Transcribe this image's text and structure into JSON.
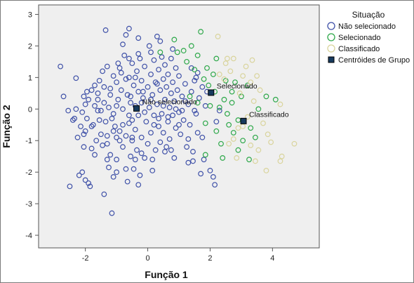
{
  "chart_data": {
    "type": "scatter",
    "xlabel": "Função 1",
    "ylabel": "Função 2",
    "xlim": [
      -3.5,
      5.5
    ],
    "ylim": [
      -4.4,
      3.3
    ],
    "x_ticks": [
      -2,
      0,
      2,
      4
    ],
    "y_ticks": [
      3,
      2,
      1,
      0,
      -1,
      -2,
      -3,
      -4
    ],
    "grid": false,
    "legend_position": "right",
    "legend": {
      "title": "Situação",
      "entries": [
        {
          "label": "Não selecionado",
          "marker": "circle",
          "color": "#3f51a8"
        },
        {
          "label": "Selecionado",
          "marker": "circle",
          "color": "#2ea84a"
        },
        {
          "label": "Classificado",
          "marker": "circle",
          "color": "#d9d49c"
        },
        {
          "label": "Centróides de Grupo",
          "marker": "square",
          "color": "#173a5e"
        }
      ]
    },
    "series": [
      {
        "name": "Não selecionado",
        "color": "#3f51a8",
        "points": [
          [
            -2.8,
            1.35
          ],
          [
            -2.7,
            0.4
          ],
          [
            -2.55,
            -0.05
          ],
          [
            -2.5,
            -2.45
          ],
          [
            -2.4,
            -0.35
          ],
          [
            -2.35,
            -0.3
          ],
          [
            -2.3,
            0.98
          ],
          [
            -2.2,
            -2.1
          ],
          [
            -2.1,
            -2.0
          ],
          [
            -2.0,
            -2.25
          ],
          [
            -2.05,
            -0.8
          ],
          [
            -2.15,
            -0.55
          ],
          [
            -2.0,
            0.15
          ],
          [
            -2.05,
            0.4
          ],
          [
            -1.95,
            -0.3
          ],
          [
            -1.9,
            0.3
          ],
          [
            -1.9,
            -2.35
          ],
          [
            -1.85,
            -2.45
          ],
          [
            -1.8,
            0.6
          ],
          [
            -1.8,
            -1.25
          ],
          [
            -1.75,
            -0.5
          ],
          [
            -1.7,
            0.75
          ],
          [
            -1.65,
            -1.0
          ],
          [
            -1.6,
            -0.05
          ],
          [
            -1.6,
            0.5
          ],
          [
            -1.55,
            0.9
          ],
          [
            -1.5,
            -0.8
          ],
          [
            -1.45,
            1.2
          ],
          [
            -1.4,
            -2.7
          ],
          [
            -1.4,
            0.2
          ],
          [
            -1.35,
            -0.4
          ],
          [
            -1.3,
            1.35
          ],
          [
            -1.3,
            -1.1
          ],
          [
            -1.25,
            0.05
          ],
          [
            -1.2,
            0.65
          ],
          [
            -1.2,
            -1.45
          ],
          [
            -1.15,
            -0.3
          ],
          [
            -1.1,
            1.05
          ],
          [
            -1.1,
            -0.15
          ],
          [
            -1.05,
            -0.55
          ],
          [
            -1.0,
            0.85
          ],
          [
            -1.0,
            -1.6
          ],
          [
            -0.95,
            0.3
          ],
          [
            -0.9,
            -0.7
          ],
          [
            -0.9,
            1.3
          ],
          [
            -0.85,
            0.6
          ],
          [
            -0.8,
            -1.2
          ],
          [
            -0.8,
            0.0
          ],
          [
            -0.75,
            1.7
          ],
          [
            -0.7,
            -0.85
          ],
          [
            -0.7,
            2.35
          ],
          [
            -0.65,
            0.45
          ],
          [
            -0.65,
            -2.3
          ],
          [
            -0.6,
            1.0
          ],
          [
            -0.6,
            -0.45
          ],
          [
            -0.55,
            -1.5
          ],
          [
            -0.55,
            0.2
          ],
          [
            -0.5,
            1.45
          ],
          [
            -0.5,
            -1.0
          ],
          [
            -0.45,
            0.75
          ],
          [
            -0.45,
            -1.9
          ],
          [
            -0.4,
            0.1
          ],
          [
            -0.4,
            -0.65
          ],
          [
            -0.35,
            1.2
          ],
          [
            -0.35,
            -1.3
          ],
          [
            -0.3,
            0.55
          ],
          [
            -0.3,
            -0.2
          ],
          [
            -0.25,
            -2.1
          ],
          [
            -0.25,
            1.6
          ],
          [
            -0.2,
            0.9
          ],
          [
            -0.2,
            -0.9
          ],
          [
            -0.15,
            0.35
          ],
          [
            -0.1,
            -1.55
          ],
          [
            -0.1,
            1.35
          ],
          [
            -0.05,
            -0.4
          ],
          [
            0.0,
            0.7
          ],
          [
            0.0,
            -1.1
          ],
          [
            0.05,
            2.0
          ],
          [
            0.05,
            0.05
          ],
          [
            0.1,
            1.1
          ],
          [
            0.1,
            -0.75
          ],
          [
            0.15,
            -1.6
          ],
          [
            0.15,
            0.45
          ],
          [
            0.2,
            1.55
          ],
          [
            0.2,
            -0.2
          ],
          [
            0.25,
            0.85
          ],
          [
            0.25,
            -1.3
          ],
          [
            0.3,
            2.3
          ],
          [
            0.3,
            0.15
          ],
          [
            0.35,
            1.25
          ],
          [
            0.35,
            -0.55
          ],
          [
            0.4,
            0.6
          ],
          [
            0.4,
            -1.05
          ],
          [
            0.45,
            1.65
          ],
          [
            0.45,
            -0.15
          ],
          [
            0.5,
            0.95
          ],
          [
            0.5,
            -0.75
          ],
          [
            0.55,
            0.3
          ],
          [
            0.55,
            1.4
          ],
          [
            0.6,
            -1.2
          ],
          [
            0.6,
            0.7
          ],
          [
            0.65,
            -0.4
          ],
          [
            0.65,
            1.1
          ],
          [
            0.7,
            0.05
          ],
          [
            0.7,
            -0.95
          ],
          [
            0.75,
            0.5
          ],
          [
            0.75,
            1.6
          ],
          [
            0.8,
            -0.2
          ],
          [
            0.8,
            0.85
          ],
          [
            0.85,
            -1.55
          ],
          [
            0.85,
            0.25
          ],
          [
            0.9,
            1.3
          ],
          [
            0.9,
            -0.6
          ],
          [
            0.95,
            0.6
          ],
          [
            1.0,
            -0.1
          ],
          [
            1.0,
            1.05
          ],
          [
            1.05,
            -0.8
          ],
          [
            1.1,
            0.4
          ],
          [
            1.15,
            -0.35
          ],
          [
            1.2,
            0.8
          ],
          [
            1.25,
            -1.2
          ],
          [
            1.3,
            0.15
          ],
          [
            1.35,
            -0.5
          ],
          [
            1.4,
            0.55
          ],
          [
            1.45,
            -1.35
          ],
          [
            1.5,
            0.9
          ],
          [
            1.55,
            -0.15
          ],
          [
            1.6,
            -0.75
          ],
          [
            1.65,
            0.35
          ],
          [
            1.7,
            -2.05
          ],
          [
            1.75,
            -0.9
          ],
          [
            1.8,
            -1.6
          ],
          [
            1.85,
            0.1
          ],
          [
            2.1,
            -2.15
          ],
          [
            2.15,
            -2.4
          ],
          [
            2.2,
            -0.4
          ],
          [
            2.3,
            -0.05
          ],
          [
            1.55,
            1.0
          ],
          [
            1.4,
            1.3
          ],
          [
            -1.35,
            2.5
          ],
          [
            -0.8,
            2.05
          ],
          [
            -0.3,
            2.25
          ],
          [
            -0.6,
            2.55
          ],
          [
            -1.5,
            -0.05
          ],
          [
            -1.0,
            -0.9
          ],
          [
            -0.5,
            -0.35
          ],
          [
            0.2,
            -0.5
          ],
          [
            -0.2,
            0.2
          ],
          [
            -1.2,
            0.45
          ],
          [
            -0.9,
            -1.0
          ],
          [
            -1.1,
            -0.7
          ],
          [
            -0.7,
            0.95
          ],
          [
            -0.4,
            -1.6
          ],
          [
            -0.3,
            1.75
          ],
          [
            0.35,
            -0.3
          ],
          [
            0.55,
            -1.35
          ],
          [
            -1.3,
            -0.85
          ],
          [
            -1.7,
            0.1
          ],
          [
            -1.55,
            -0.35
          ],
          [
            -2.25,
            -0.9
          ],
          [
            -2.1,
            -0.1
          ],
          [
            0.75,
            -1.3
          ],
          [
            1.0,
            -0.5
          ],
          [
            1.3,
            -0.95
          ],
          [
            -0.1,
            -0.1
          ],
          [
            0.1,
            0.3
          ],
          [
            -0.6,
            -0.2
          ],
          [
            -0.8,
            -0.5
          ],
          [
            -1.0,
            0.1
          ],
          [
            -1.4,
            0.7
          ],
          [
            0.5,
            0.1
          ],
          [
            0.9,
            0.0
          ],
          [
            1.2,
            0.25
          ],
          [
            1.5,
            -0.05
          ],
          [
            -0.6,
            1.6
          ],
          [
            -0.4,
            1.0
          ],
          [
            0.1,
            1.8
          ],
          [
            0.4,
            2.15
          ],
          [
            -1.6,
            0.3
          ],
          [
            -1.8,
            -0.55
          ],
          [
            -2.0,
            -0.7
          ],
          [
            -1.3,
            -1.6
          ],
          [
            -0.7,
            -1.9
          ],
          [
            -0.3,
            -2.4
          ],
          [
            -1.0,
            -2.0
          ],
          [
            -1.1,
            -2.15
          ],
          [
            0.8,
            1.9
          ],
          [
            -0.5,
            -0.9
          ],
          [
            -0.2,
            -1.4
          ],
          [
            -1.15,
            -3.3
          ],
          [
            1.3,
            -1.7
          ],
          [
            1.45,
            -1.65
          ],
          [
            0.15,
            -1.95
          ],
          [
            2.0,
            -1.95
          ],
          [
            -0.85,
            1.15
          ],
          [
            -0.95,
            1.45
          ],
          [
            -0.55,
            0.4
          ],
          [
            -0.15,
            0.55
          ],
          [
            0.3,
            0.8
          ],
          [
            0.65,
            -0.25
          ],
          [
            1.1,
            -0.05
          ],
          [
            1.6,
            1.15
          ],
          [
            1.75,
            0.7
          ],
          [
            1.9,
            0.55
          ],
          [
            -1.95,
            0.55
          ],
          [
            -2.3,
            0.0
          ],
          [
            -2.05,
            -1.2
          ],
          [
            -1.7,
            -1.45
          ],
          [
            -1.45,
            -1.15
          ],
          [
            -1.25,
            -1.85
          ]
        ]
      },
      {
        "name": "Selecionado",
        "color": "#2ea84a",
        "points": [
          [
            0.85,
            2.2
          ],
          [
            0.95,
            1.8
          ],
          [
            1.15,
            1.85
          ],
          [
            1.4,
            2.0
          ],
          [
            1.6,
            1.7
          ],
          [
            1.5,
            1.25
          ],
          [
            1.7,
            2.45
          ],
          [
            1.8,
            0.95
          ],
          [
            1.9,
            1.3
          ],
          [
            1.95,
            0.75
          ],
          [
            2.1,
            1.1
          ],
          [
            2.15,
            0.55
          ],
          [
            2.2,
            1.6
          ],
          [
            2.45,
            0.3
          ],
          [
            2.5,
            0.9
          ],
          [
            2.55,
            -0.15
          ],
          [
            2.6,
            -0.5
          ],
          [
            2.7,
            0.55
          ],
          [
            2.75,
            -0.75
          ],
          [
            2.8,
            0.85
          ],
          [
            2.9,
            -0.35
          ],
          [
            3.0,
            0.4
          ],
          [
            3.05,
            -1.0
          ],
          [
            3.2,
            0.75
          ],
          [
            3.3,
            -0.6
          ],
          [
            3.45,
            -0.9
          ],
          [
            3.55,
            0.0
          ],
          [
            3.8,
            0.4
          ],
          [
            4.1,
            0.3
          ],
          [
            1.35,
            0.4
          ],
          [
            1.6,
            0.2
          ],
          [
            2.0,
            0.1
          ],
          [
            2.2,
            -0.7
          ],
          [
            2.35,
            -1.1
          ],
          [
            1.85,
            -0.45
          ],
          [
            2.4,
            -1.55
          ],
          [
            2.9,
            -1.3
          ],
          [
            3.25,
            -1.6
          ],
          [
            1.25,
            1.5
          ],
          [
            0.4,
            1.8
          ],
          [
            1.85,
            -1.45
          ],
          [
            2.3,
            0.05
          ],
          [
            2.7,
            0.2
          ]
        ]
      },
      {
        "name": "Classificado",
        "color": "#d9d49c",
        "points": [
          [
            2.25,
            2.3
          ],
          [
            2.5,
            1.45
          ],
          [
            2.65,
            1.2
          ],
          [
            2.75,
            1.6
          ],
          [
            2.95,
            0.5
          ],
          [
            3.05,
            1.05
          ],
          [
            3.15,
            1.35
          ],
          [
            3.3,
            0.85
          ],
          [
            3.4,
            0.25
          ],
          [
            3.5,
            1.05
          ],
          [
            3.6,
            0.6
          ],
          [
            3.7,
            -0.45
          ],
          [
            3.85,
            -0.8
          ],
          [
            3.95,
            -1.05
          ],
          [
            3.55,
            -1.3
          ],
          [
            3.3,
            -1.15
          ],
          [
            2.75,
            -0.95
          ],
          [
            2.85,
            -1.55
          ],
          [
            3.05,
            -0.55
          ],
          [
            3.2,
            -0.25
          ],
          [
            3.45,
            -1.65
          ],
          [
            3.8,
            -1.95
          ],
          [
            4.25,
            -1.65
          ],
          [
            4.3,
            -1.5
          ],
          [
            4.7,
            -1.1
          ],
          [
            4.25,
            0.15
          ],
          [
            2.9,
            -0.6
          ],
          [
            2.6,
            -1.1
          ],
          [
            2.45,
            0.95
          ],
          [
            3.35,
            1.55
          ],
          [
            2.55,
            1.6
          ],
          [
            2.3,
            1.1
          ]
        ]
      },
      {
        "name": "Centróides de Grupo",
        "color": "#173a5e",
        "points": [
          [
            -0.36,
            0.02
          ],
          [
            2.03,
            0.52
          ],
          [
            3.07,
            -0.38
          ]
        ],
        "labels": [
          "Não selecionado",
          "Selecionado",
          "Classificado"
        ]
      }
    ]
  }
}
